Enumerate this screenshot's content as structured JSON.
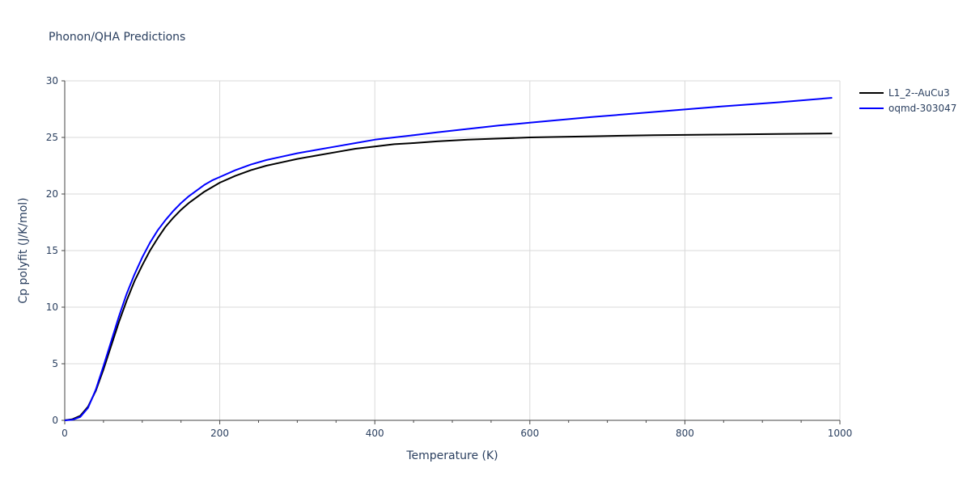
{
  "chart_data": {
    "type": "line",
    "title": "Phonon/QHA Predictions",
    "xlabel": "Temperature (K)",
    "ylabel": "Cp polyfit (J/K/mol)",
    "xlim": [
      0,
      1000
    ],
    "ylim": [
      0,
      30
    ],
    "xticks": [
      0,
      200,
      400,
      600,
      800,
      1000
    ],
    "yticks": [
      0,
      5,
      10,
      15,
      20,
      25,
      30
    ],
    "xgrid": true,
    "ygrid": true,
    "legend_position": "top-right",
    "series": [
      {
        "name": "L1_2--AuCu3",
        "color": "#000000",
        "x": [
          0,
          10,
          20,
          30,
          40,
          50,
          60,
          70,
          80,
          90,
          100,
          110,
          120,
          130,
          140,
          150,
          160,
          170,
          180,
          190,
          200,
          220,
          240,
          260,
          280,
          300,
          325,
          350,
          375,
          400,
          425,
          450,
          480,
          520,
          560,
          600,
          680,
          760,
          840,
          920,
          990
        ],
        "values": [
          0,
          0.1,
          0.4,
          1.2,
          2.6,
          4.5,
          6.6,
          8.7,
          10.6,
          12.3,
          13.7,
          15.0,
          16.1,
          17.1,
          17.9,
          18.6,
          19.2,
          19.7,
          20.2,
          20.6,
          21.0,
          21.6,
          22.1,
          22.5,
          22.8,
          23.1,
          23.4,
          23.7,
          24.0,
          24.2,
          24.4,
          24.5,
          24.65,
          24.8,
          24.9,
          25.0,
          25.1,
          25.2,
          25.25,
          25.3,
          25.35
        ]
      },
      {
        "name": "oqmd-303047",
        "color": "#0000ff",
        "x": [
          0,
          10,
          20,
          30,
          40,
          50,
          60,
          70,
          80,
          90,
          100,
          110,
          120,
          130,
          140,
          150,
          160,
          170,
          180,
          190,
          200,
          220,
          240,
          260,
          280,
          300,
          325,
          350,
          375,
          400,
          425,
          450,
          480,
          520,
          560,
          600,
          680,
          760,
          840,
          920,
          990
        ],
        "values": [
          0,
          0.05,
          0.3,
          1.1,
          2.7,
          4.8,
          7.0,
          9.2,
          11.2,
          12.9,
          14.4,
          15.7,
          16.8,
          17.7,
          18.5,
          19.2,
          19.8,
          20.3,
          20.8,
          21.2,
          21.5,
          22.1,
          22.6,
          23.0,
          23.3,
          23.6,
          23.9,
          24.2,
          24.5,
          24.8,
          25.0,
          25.2,
          25.45,
          25.75,
          26.05,
          26.3,
          26.8,
          27.25,
          27.7,
          28.1,
          28.5
        ]
      }
    ]
  }
}
